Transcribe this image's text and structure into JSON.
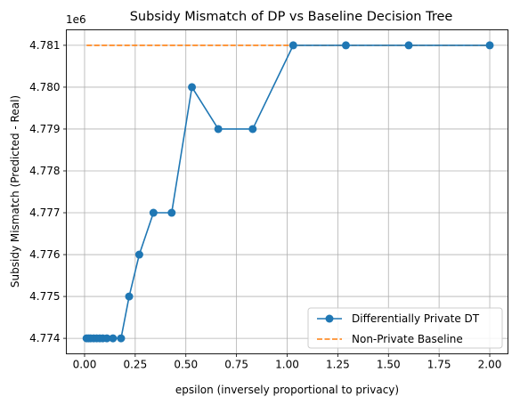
{
  "chart_data": {
    "type": "line",
    "title": "Subsidy Mismatch of DP vs Baseline Decision Tree",
    "xlabel": "epsilon (inversely proportional to privacy)",
    "ylabel": "Subsidy Mismatch (Predicted - Real)",
    "offset_label": "1e6",
    "xlim": [
      -0.09,
      2.09
    ],
    "ylim": [
      4.77363,
      4.78137
    ],
    "x_ticks": [
      0.0,
      0.25,
      0.5,
      0.75,
      1.0,
      1.25,
      1.5,
      1.75,
      2.0
    ],
    "x_tick_labels": [
      "0.00",
      "0.25",
      "0.50",
      "0.75",
      "1.00",
      "1.25",
      "1.50",
      "1.75",
      "2.00"
    ],
    "y_ticks": [
      4.774,
      4.775,
      4.776,
      4.777,
      4.778,
      4.779,
      4.78,
      4.781
    ],
    "y_tick_labels": [
      "4.774",
      "4.775",
      "4.776",
      "4.777",
      "4.778",
      "4.779",
      "4.780",
      "4.781"
    ],
    "grid": true,
    "legend_position": "lower right",
    "series": [
      {
        "name": "Differentially Private DT",
        "color": "#1f77b4",
        "style": "solid",
        "marker": "circle",
        "x": [
          0.01,
          0.02,
          0.03,
          0.045,
          0.06,
          0.075,
          0.09,
          0.11,
          0.14,
          0.18,
          0.22,
          0.27,
          0.34,
          0.43,
          0.53,
          0.66,
          0.83,
          1.03,
          1.29,
          1.6,
          2.0
        ],
        "y": [
          4.774,
          4.774,
          4.774,
          4.774,
          4.774,
          4.774,
          4.774,
          4.774,
          4.774,
          4.774,
          4.775,
          4.776,
          4.777,
          4.777,
          4.78,
          4.779,
          4.779,
          4.781,
          4.781,
          4.781,
          4.781
        ]
      },
      {
        "name": "Non-Private Baseline",
        "color": "#ff7f0e",
        "style": "dashed",
        "marker": "none",
        "x": [
          0.01,
          2.0
        ],
        "y": [
          4.781,
          4.781
        ]
      }
    ]
  }
}
